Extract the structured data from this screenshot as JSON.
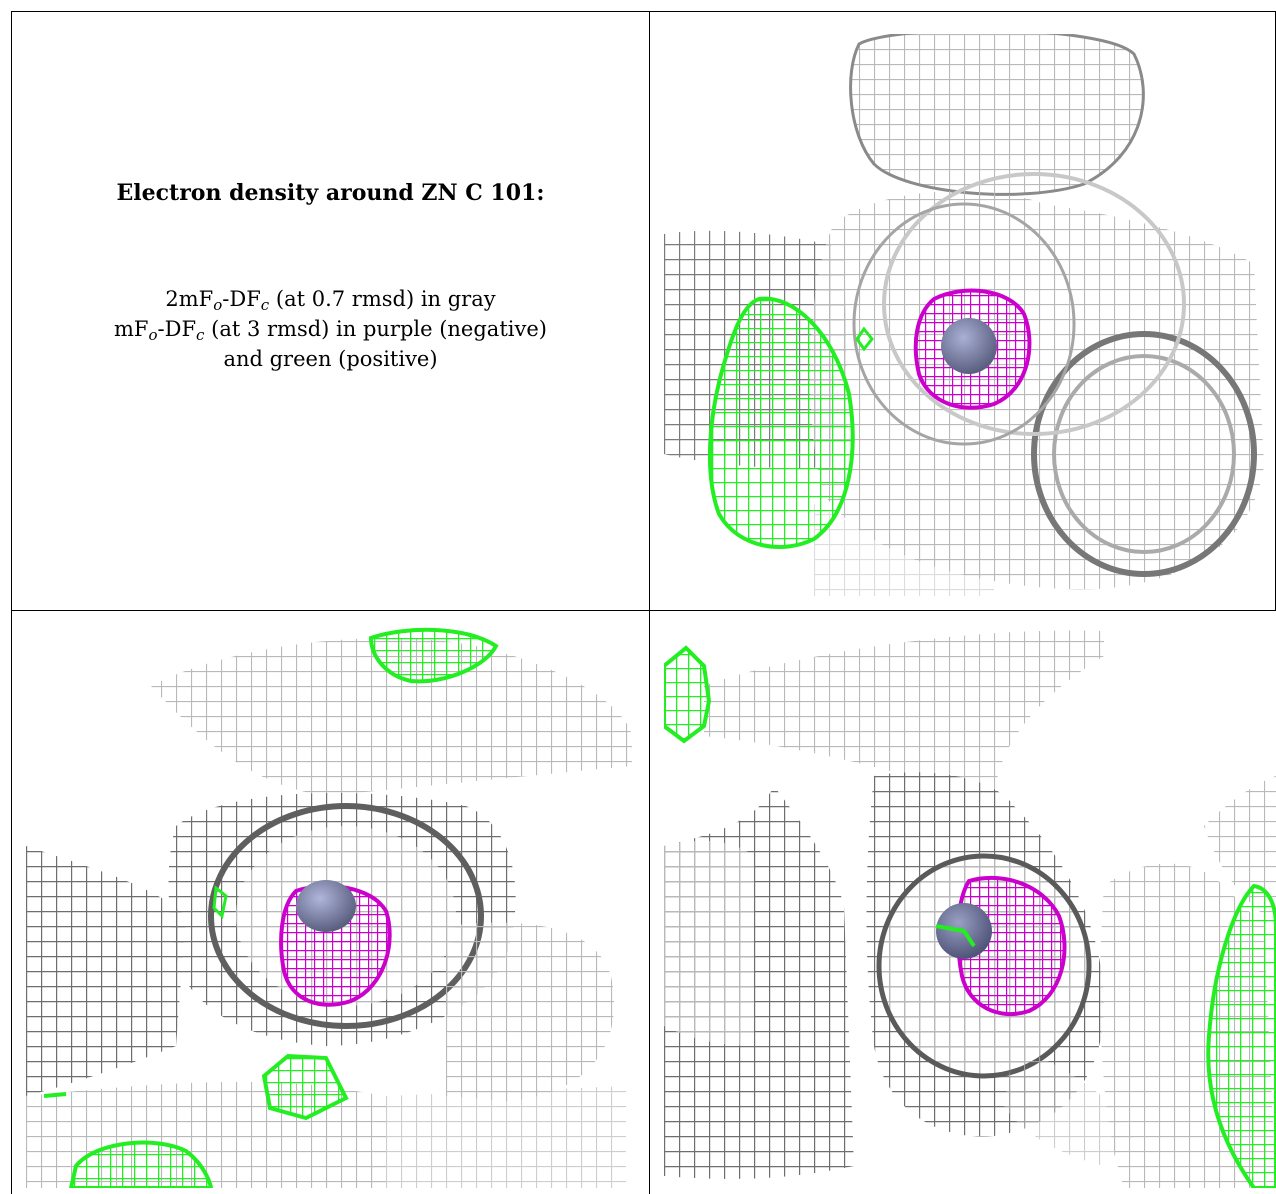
{
  "caption": {
    "title": "Electron density around ZN C 101:",
    "line1": {
      "prefix": "2mF",
      "sub1": "o",
      "mid": "-DF",
      "sub2": "c",
      "suffix": " (at 0.7 rmsd) in gray"
    },
    "line2": {
      "prefix": "mF",
      "sub1": "o",
      "mid": "-DF",
      "sub2": "c",
      "suffix": " (at 3 rmsd) in purple (negative)"
    },
    "line3": "and green (positive)"
  },
  "colors": {
    "gray_mesh": "#b9b9b9",
    "dark_mesh": "#6e6e6e",
    "negative_purple": "#cc00cc",
    "positive_green": "#22ee22",
    "zinc_atom": "#7a80a6"
  },
  "views": [
    {
      "name": "view-top-right"
    },
    {
      "name": "view-bottom-left"
    },
    {
      "name": "view-bottom-right"
    }
  ]
}
